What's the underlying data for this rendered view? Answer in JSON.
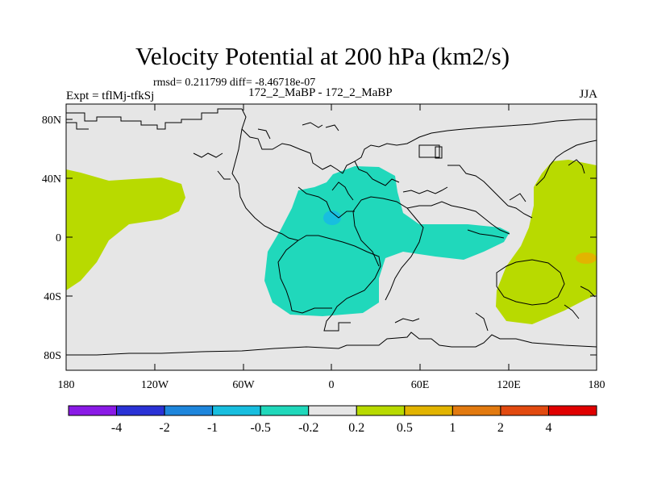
{
  "title": "Velocity Potential at 200 hPa (km2/s)",
  "stats": "rmsd= 0.211799 diff= -8.46718e-07",
  "experiment": "Expt = tflMj-tfkSj",
  "cases": "172_2_MaBP - 172_2_MaBP",
  "season": "JJA",
  "axes": {
    "lat_labels": [
      "80N",
      "40N",
      "0",
      "40S",
      "80S"
    ],
    "lon_labels": [
      "180",
      "120W",
      "60W",
      "0",
      "60E",
      "120E",
      "180"
    ]
  },
  "colorbar": {
    "labels": [
      "-4",
      "-2",
      "-1",
      "-0.5",
      "-0.2",
      "0.2",
      "0.5",
      "1",
      "2",
      "4"
    ],
    "colors": [
      "#8a1ae6",
      "#2a32d6",
      "#1e86dc",
      "#18bedf",
      "#20d8bb",
      "#e6e6e6",
      "#b8da00",
      "#e2b400",
      "#e27a10",
      "#e24a10",
      "#e00000"
    ]
  },
  "map": {
    "background_color": "#e6e6e6",
    "positive_color": "#b8da00",
    "negative_color": "#20d8bb",
    "min_color": "#18bedf",
    "max_color": "#e2b400"
  }
}
